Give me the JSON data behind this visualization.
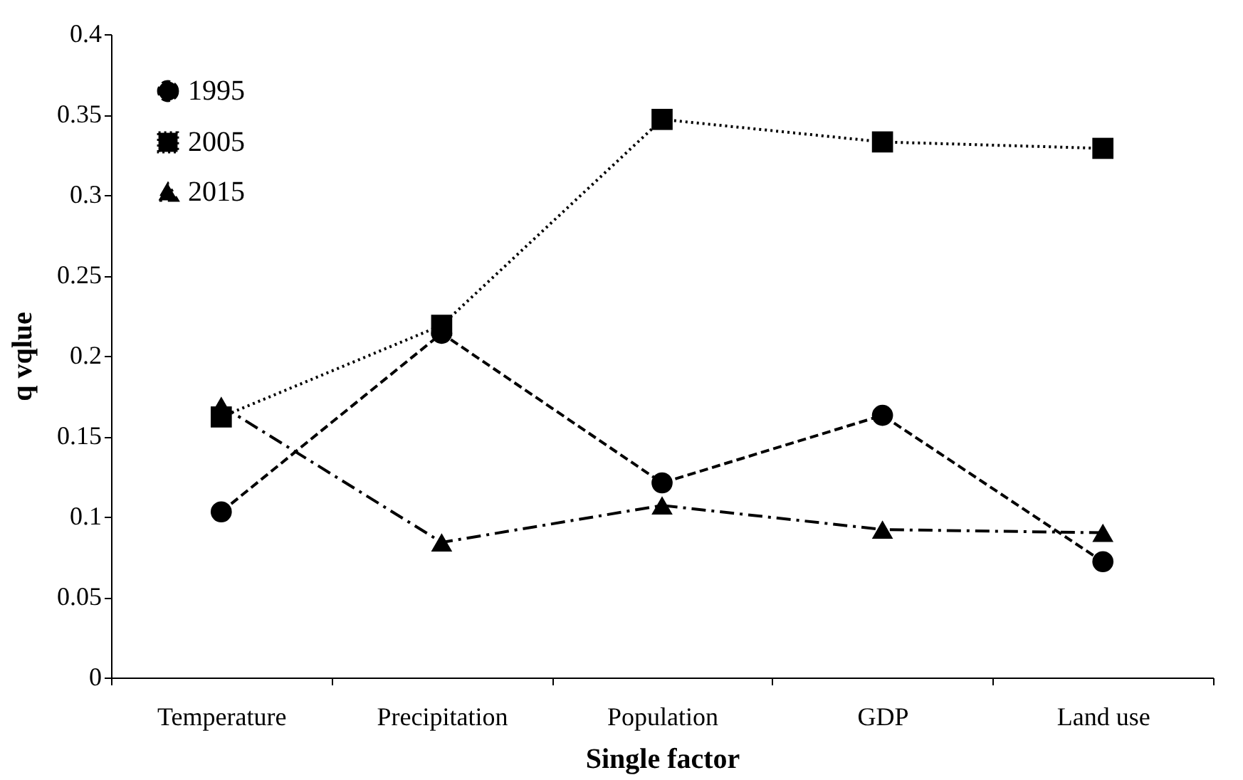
{
  "chart_data": {
    "type": "line",
    "xlabel": "Single factor",
    "ylabel": "q vqlue",
    "categories": [
      "Temperature",
      "Precipitation",
      "Population",
      "GDP",
      "Land use"
    ],
    "series": [
      {
        "name": "1995",
        "color": "#000000",
        "marker": "circle",
        "line_style": "dashed",
        "values": [
          0.103,
          0.214,
          0.121,
          0.163,
          0.072
        ]
      },
      {
        "name": "2005",
        "color": "#000000",
        "marker": "square",
        "line_style": "dotted",
        "values": [
          0.162,
          0.219,
          0.347,
          0.333,
          0.329
        ]
      },
      {
        "name": "2015",
        "color": "#000000",
        "marker": "triangle",
        "line_style": "dashdot",
        "values": [
          0.169,
          0.084,
          0.107,
          0.092,
          0.09
        ]
      }
    ],
    "ylim": [
      0,
      0.4
    ],
    "yticks": [
      0,
      0.05,
      0.1,
      0.15,
      0.2,
      0.25,
      0.3,
      0.35,
      0.4
    ],
    "grid": false,
    "legend": "top left"
  }
}
